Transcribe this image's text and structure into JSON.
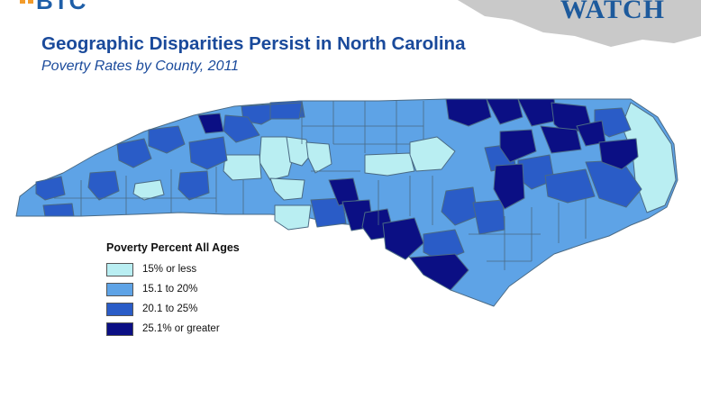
{
  "header": {
    "logo_left_text": "BTC",
    "logo_right_text": "WATCH",
    "title": "Geographic Disparities Persist in North Carolina",
    "subtitle": "Poverty Rates by County, 2011"
  },
  "legend": {
    "title": "Poverty Percent All Ages",
    "items": [
      {
        "label": "15% or less",
        "color": "#b9eef2"
      },
      {
        "label": "15.1 to 20%",
        "color": "#5ea3e6"
      },
      {
        "label": "20.1 to 25%",
        "color": "#2a5cc7"
      },
      {
        "label": "25.1% or greater",
        "color": "#0b0f84"
      }
    ]
  },
  "colors": {
    "border": "#4a6a84",
    "title": "#1a4a9b"
  }
}
